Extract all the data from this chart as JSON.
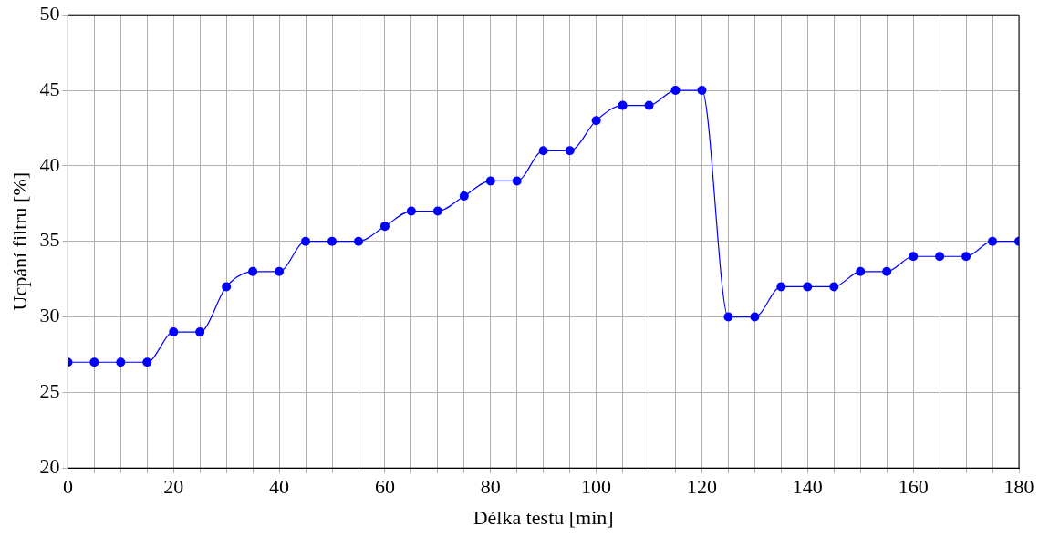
{
  "chart_data": {
    "type": "line",
    "xlabel": "Délka testu [min]",
    "ylabel": "Ucpání filtru [%]",
    "x": [
      0,
      5,
      10,
      15,
      20,
      25,
      30,
      35,
      40,
      45,
      50,
      55,
      60,
      65,
      70,
      75,
      80,
      85,
      90,
      95,
      100,
      105,
      110,
      115,
      120,
      125,
      130,
      135,
      140,
      145,
      150,
      155,
      160,
      165,
      170,
      175,
      180
    ],
    "series": [
      {
        "color": "#0000ff",
        "values": [
          27,
          27,
          27,
          27,
          29,
          29,
          32,
          33,
          33,
          35,
          35,
          35,
          36,
          37,
          37,
          38,
          39,
          39,
          41,
          41,
          43,
          44,
          44,
          45,
          45,
          30,
          30,
          32,
          32,
          32,
          33,
          33,
          34,
          34,
          34,
          35,
          35
        ]
      }
    ],
    "xlim": [
      0,
      180
    ],
    "xticks": [
      0,
      {
        "value": 5,
        "label": null
      },
      {
        "value": 10,
        "label": null
      },
      {
        "value": 15,
        "label": null
      },
      20,
      {
        "value": 25,
        "label": null
      },
      {
        "value": 30,
        "label": null
      },
      {
        "value": 35,
        "label": null
      },
      40,
      {
        "value": 45,
        "label": null
      },
      {
        "value": 50,
        "label": null
      },
      {
        "value": 55,
        "label": null
      },
      60,
      {
        "value": 65,
        "label": null
      },
      {
        "value": 70,
        "label": null
      },
      {
        "value": 75,
        "label": null
      },
      80,
      {
        "value": 85,
        "label": null
      },
      {
        "value": 90,
        "label": null
      },
      {
        "value": 95,
        "label": null
      },
      100,
      {
        "value": 105,
        "label": null
      },
      {
        "value": 110,
        "label": null
      },
      {
        "value": 115,
        "label": null
      },
      120,
      {
        "value": 125,
        "label": null
      },
      {
        "value": 130,
        "label": null
      },
      {
        "value": 135,
        "label": null
      },
      140,
      {
        "value": 145,
        "label": null
      },
      {
        "value": 150,
        "label": null
      },
      {
        "value": 155,
        "label": null
      },
      160,
      {
        "value": 165,
        "label": null
      },
      {
        "value": 170,
        "label": null
      },
      {
        "value": 175,
        "label": null
      },
      180
    ],
    "ylim": [
      20,
      50
    ],
    "yticks": [
      20,
      25,
      30,
      35,
      40,
      45,
      50
    ],
    "grid": true,
    "marker": "circle",
    "line_style": "solid",
    "legend": false
  }
}
